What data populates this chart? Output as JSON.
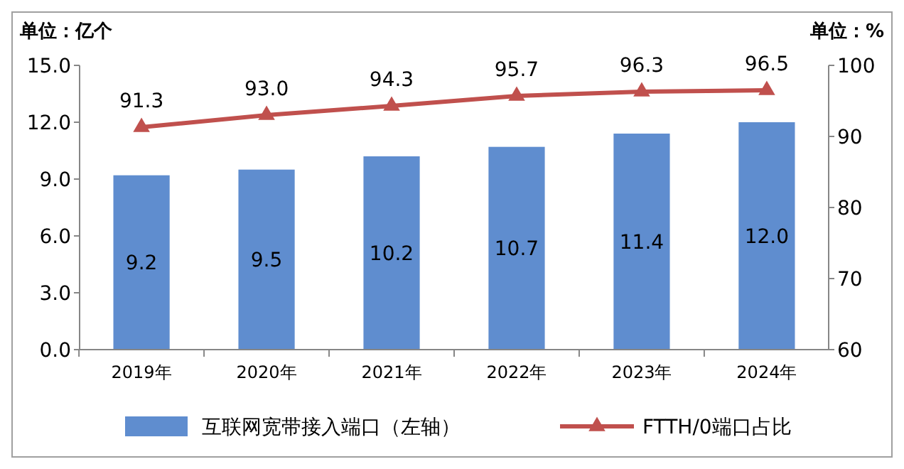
{
  "chart_data": {
    "type": "bar",
    "ylabel": "单位：亿个",
    "y2label": "单位：%",
    "categories": [
      "2019年",
      "2020年",
      "2021年",
      "2022年",
      "2023年",
      "2024年"
    ],
    "series": [
      {
        "name": "互联网宽带接入端口（左轴）",
        "color": "#5f8dcf",
        "values": [
          9.2,
          9.5,
          10.2,
          10.7,
          11.4,
          12.0
        ],
        "value_labels": [
          "9.2",
          "9.5",
          "10.2",
          "10.7",
          "11.4",
          "12.0"
        ]
      },
      {
        "name": "FTTH/0端口占比",
        "type": "line",
        "axis": "y2",
        "color": "#c0504d",
        "marker": "triangle",
        "values": [
          91.3,
          93.0,
          94.3,
          95.7,
          96.3,
          96.5
        ],
        "value_labels": [
          "91.3",
          "93.0",
          "94.3",
          "95.7",
          "96.3",
          "96.5"
        ]
      }
    ],
    "ylim": [
      0,
      15
    ],
    "yticks": [
      {
        "value": 0,
        "label": "0.0"
      },
      {
        "value": 3,
        "label": "3.0"
      },
      {
        "value": 6,
        "label": "6.0"
      },
      {
        "value": 9,
        "label": "9.0"
      },
      {
        "value": 12,
        "label": "12.0"
      },
      {
        "value": 15,
        "label": "15.0"
      }
    ],
    "y2lim": [
      60,
      100
    ],
    "y2ticks": [
      60,
      70,
      80,
      90,
      100
    ],
    "legend": "bottom"
  }
}
